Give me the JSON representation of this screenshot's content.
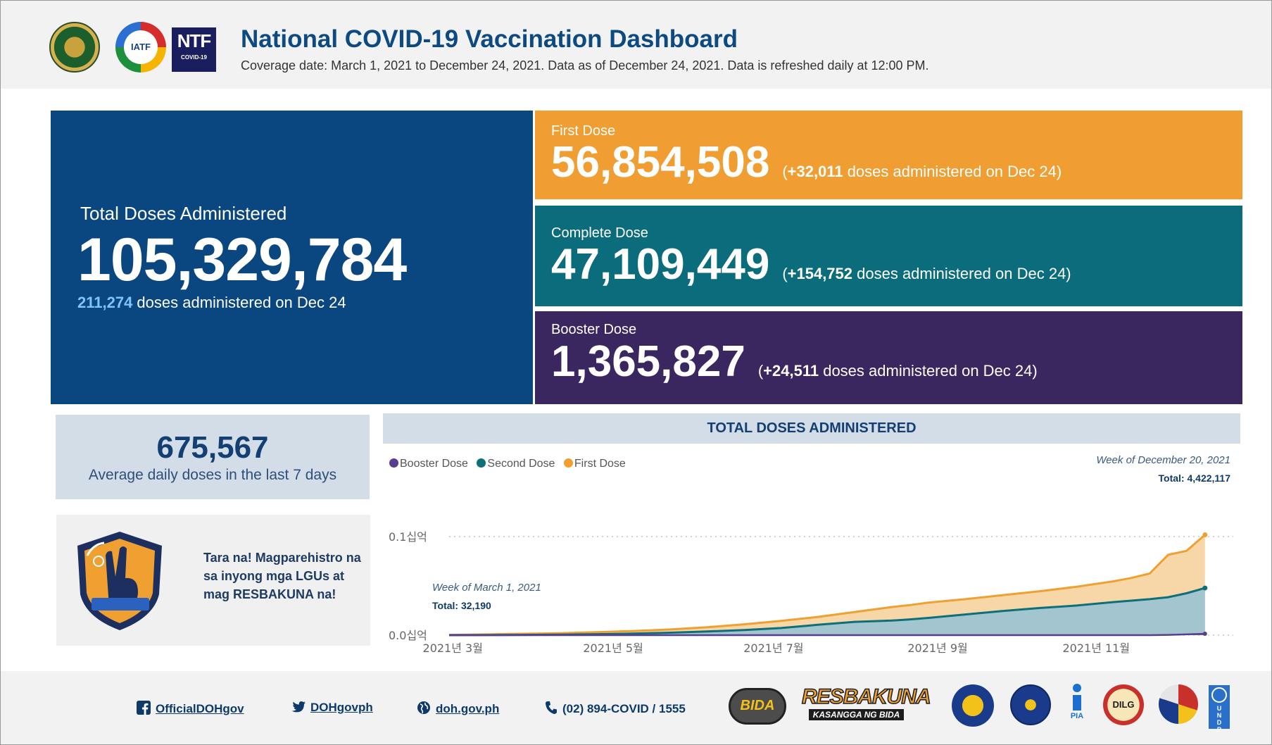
{
  "header": {
    "title": "National COVID-19 Vaccination Dashboard",
    "subtitle": "Coverage date: March 1, 2021 to December 24, 2021. Data as of December 24, 2021. Data is refreshed daily at 12:00 PM.",
    "logos": {
      "iatf": "IATF",
      "ntf_big": "NTF",
      "ntf_small": "COVID-19"
    }
  },
  "total": {
    "label": "Total Doses Administered",
    "value": "105,329,784",
    "daily": "211,274",
    "daily_suffix": " doses administered on Dec 24"
  },
  "first_dose": {
    "label": "First Dose",
    "value": "56,854,508",
    "delta_open": "(",
    "delta": "+32,011",
    "delta_suffix": " doses administered on Dec 24)"
  },
  "complete_dose": {
    "label": "Complete Dose",
    "value": "47,109,449",
    "delta_open": "(",
    "delta": "+154,752",
    "delta_suffix": " doses administered on Dec 24)"
  },
  "booster_dose": {
    "label": "Booster Dose",
    "value": "1,365,827",
    "delta_open": "(",
    "delta": "+24,511",
    "delta_suffix": " doses administered on Dec 24)"
  },
  "average": {
    "value": "675,567",
    "label": "Average daily doses in the last 7 days"
  },
  "promo": {
    "text": "Tara na! Magparehistro na sa inyong mga LGUs at mag RESBAKUNA na!"
  },
  "chart_data": {
    "type": "area",
    "title": "TOTAL DOSES ADMINISTERED",
    "legend": [
      "Booster Dose",
      "Second Dose",
      "First Dose"
    ],
    "colors": {
      "booster": "#5b3d8f",
      "second": "#0d6f7a",
      "first": "#f0a030",
      "first_fill": "#f7d7a8",
      "second_fill": "#a3c5cf"
    },
    "ylim": [
      0,
      0.1
    ],
    "yticks": [
      {
        "value": 0.0,
        "label": "0.0십억"
      },
      {
        "value": 0.1,
        "label": "0.1십억"
      }
    ],
    "xlim": [
      0,
      42
    ],
    "xticks": [
      {
        "value": 0.2,
        "label": "2021년 3월"
      },
      {
        "value": 8.9,
        "label": "2021년 5월"
      },
      {
        "value": 17.6,
        "label": "2021년 7월"
      },
      {
        "value": 26.5,
        "label": "2021년 9월"
      },
      {
        "value": 35.1,
        "label": "2021년 11월"
      }
    ],
    "weeks": [
      0,
      2,
      4,
      6,
      8,
      10,
      12,
      14,
      16,
      18,
      20,
      22,
      24,
      25,
      26,
      28,
      30,
      32,
      34,
      36,
      37,
      38,
      39,
      40,
      41
    ],
    "series": [
      {
        "name": "First Dose",
        "values": [
          0.0003,
          0.0008,
          0.0014,
          0.002,
          0.003,
          0.0042,
          0.0058,
          0.008,
          0.011,
          0.0145,
          0.0185,
          0.0235,
          0.0285,
          0.0305,
          0.033,
          0.0365,
          0.0405,
          0.0445,
          0.049,
          0.0545,
          0.058,
          0.0625,
          0.0815,
          0.0855,
          0.1018
        ]
      },
      {
        "name": "Second Dose",
        "values": [
          0.0,
          0.0001,
          0.0003,
          0.0006,
          0.001,
          0.0016,
          0.0025,
          0.0037,
          0.0052,
          0.0072,
          0.0105,
          0.0135,
          0.0148,
          0.016,
          0.0175,
          0.021,
          0.0245,
          0.0275,
          0.03,
          0.0335,
          0.035,
          0.0365,
          0.0385,
          0.0425,
          0.0478
        ]
      },
      {
        "name": "Booster Dose",
        "values": [
          0,
          0,
          0,
          0,
          0,
          0,
          0,
          0,
          0,
          0,
          0,
          0,
          0,
          0,
          0,
          0,
          0,
          0,
          0,
          0,
          0,
          0,
          0.0003,
          0.0008,
          0.0014
        ]
      }
    ],
    "tooltip_start": {
      "week": "Week of March 1, 2021",
      "total": "Total: 32,190"
    },
    "tooltip_end": {
      "week": "Week of December 20, 2021",
      "total": "Total: 4,422,117"
    }
  },
  "footer": {
    "facebook": "OfficialDOHgov",
    "twitter": "DOHgovph",
    "website": "doh.gov.ph",
    "phone": "(02) 894-COVID / 1555",
    "partner_logos": {
      "bida": "BIDA",
      "resbakuna": "RESBAKUNA",
      "resbakuna_tag": "KASANGGA NG BIDA",
      "pia": "PIA",
      "dilg": "DILG",
      "undp": "U N D P"
    }
  }
}
